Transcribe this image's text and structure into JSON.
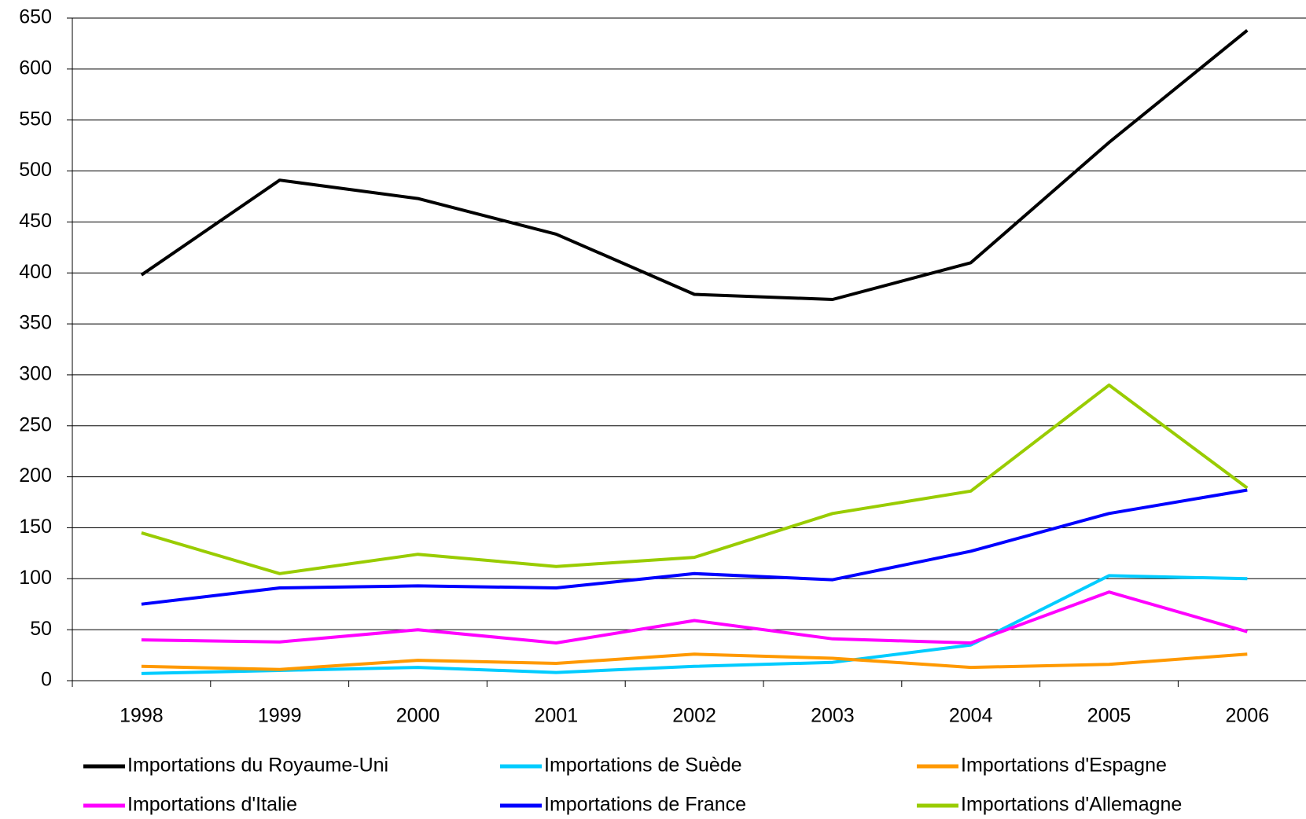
{
  "chart_data": {
    "type": "line",
    "categories": [
      "1998",
      "1999",
      "2000",
      "2001",
      "2002",
      "2003",
      "2004",
      "2005",
      "2006"
    ],
    "series": [
      {
        "name": "Importations du Royaume-Uni",
        "color": "#000000",
        "values": [
          398,
          491,
          473,
          438,
          379,
          374,
          410,
          528,
          638
        ]
      },
      {
        "name": "Importations de Suède",
        "color": "#00ccff",
        "values": [
          7,
          10,
          13,
          8,
          14,
          18,
          35,
          103,
          100
        ]
      },
      {
        "name": "Importations d'Espagne",
        "color": "#ff9900",
        "values": [
          14,
          11,
          20,
          17,
          26,
          22,
          13,
          16,
          26
        ]
      },
      {
        "name": "Importations d'Italie",
        "color": "#ff00ff",
        "values": [
          40,
          38,
          50,
          37,
          59,
          41,
          37,
          87,
          48
        ]
      },
      {
        "name": "Importations de France",
        "color": "#0000ff",
        "values": [
          75,
          91,
          93,
          91,
          105,
          99,
          127,
          164,
          187
        ]
      },
      {
        "name": "Importations d'Allemagne",
        "color": "#99cc00",
        "values": [
          145,
          105,
          124,
          112,
          121,
          164,
          186,
          290,
          189
        ]
      }
    ],
    "ylim": [
      0,
      650
    ],
    "yticks": [
      0,
      50,
      100,
      150,
      200,
      250,
      300,
      350,
      400,
      450,
      500,
      550,
      600,
      650
    ],
    "grid": true,
    "legend": "bottom"
  }
}
